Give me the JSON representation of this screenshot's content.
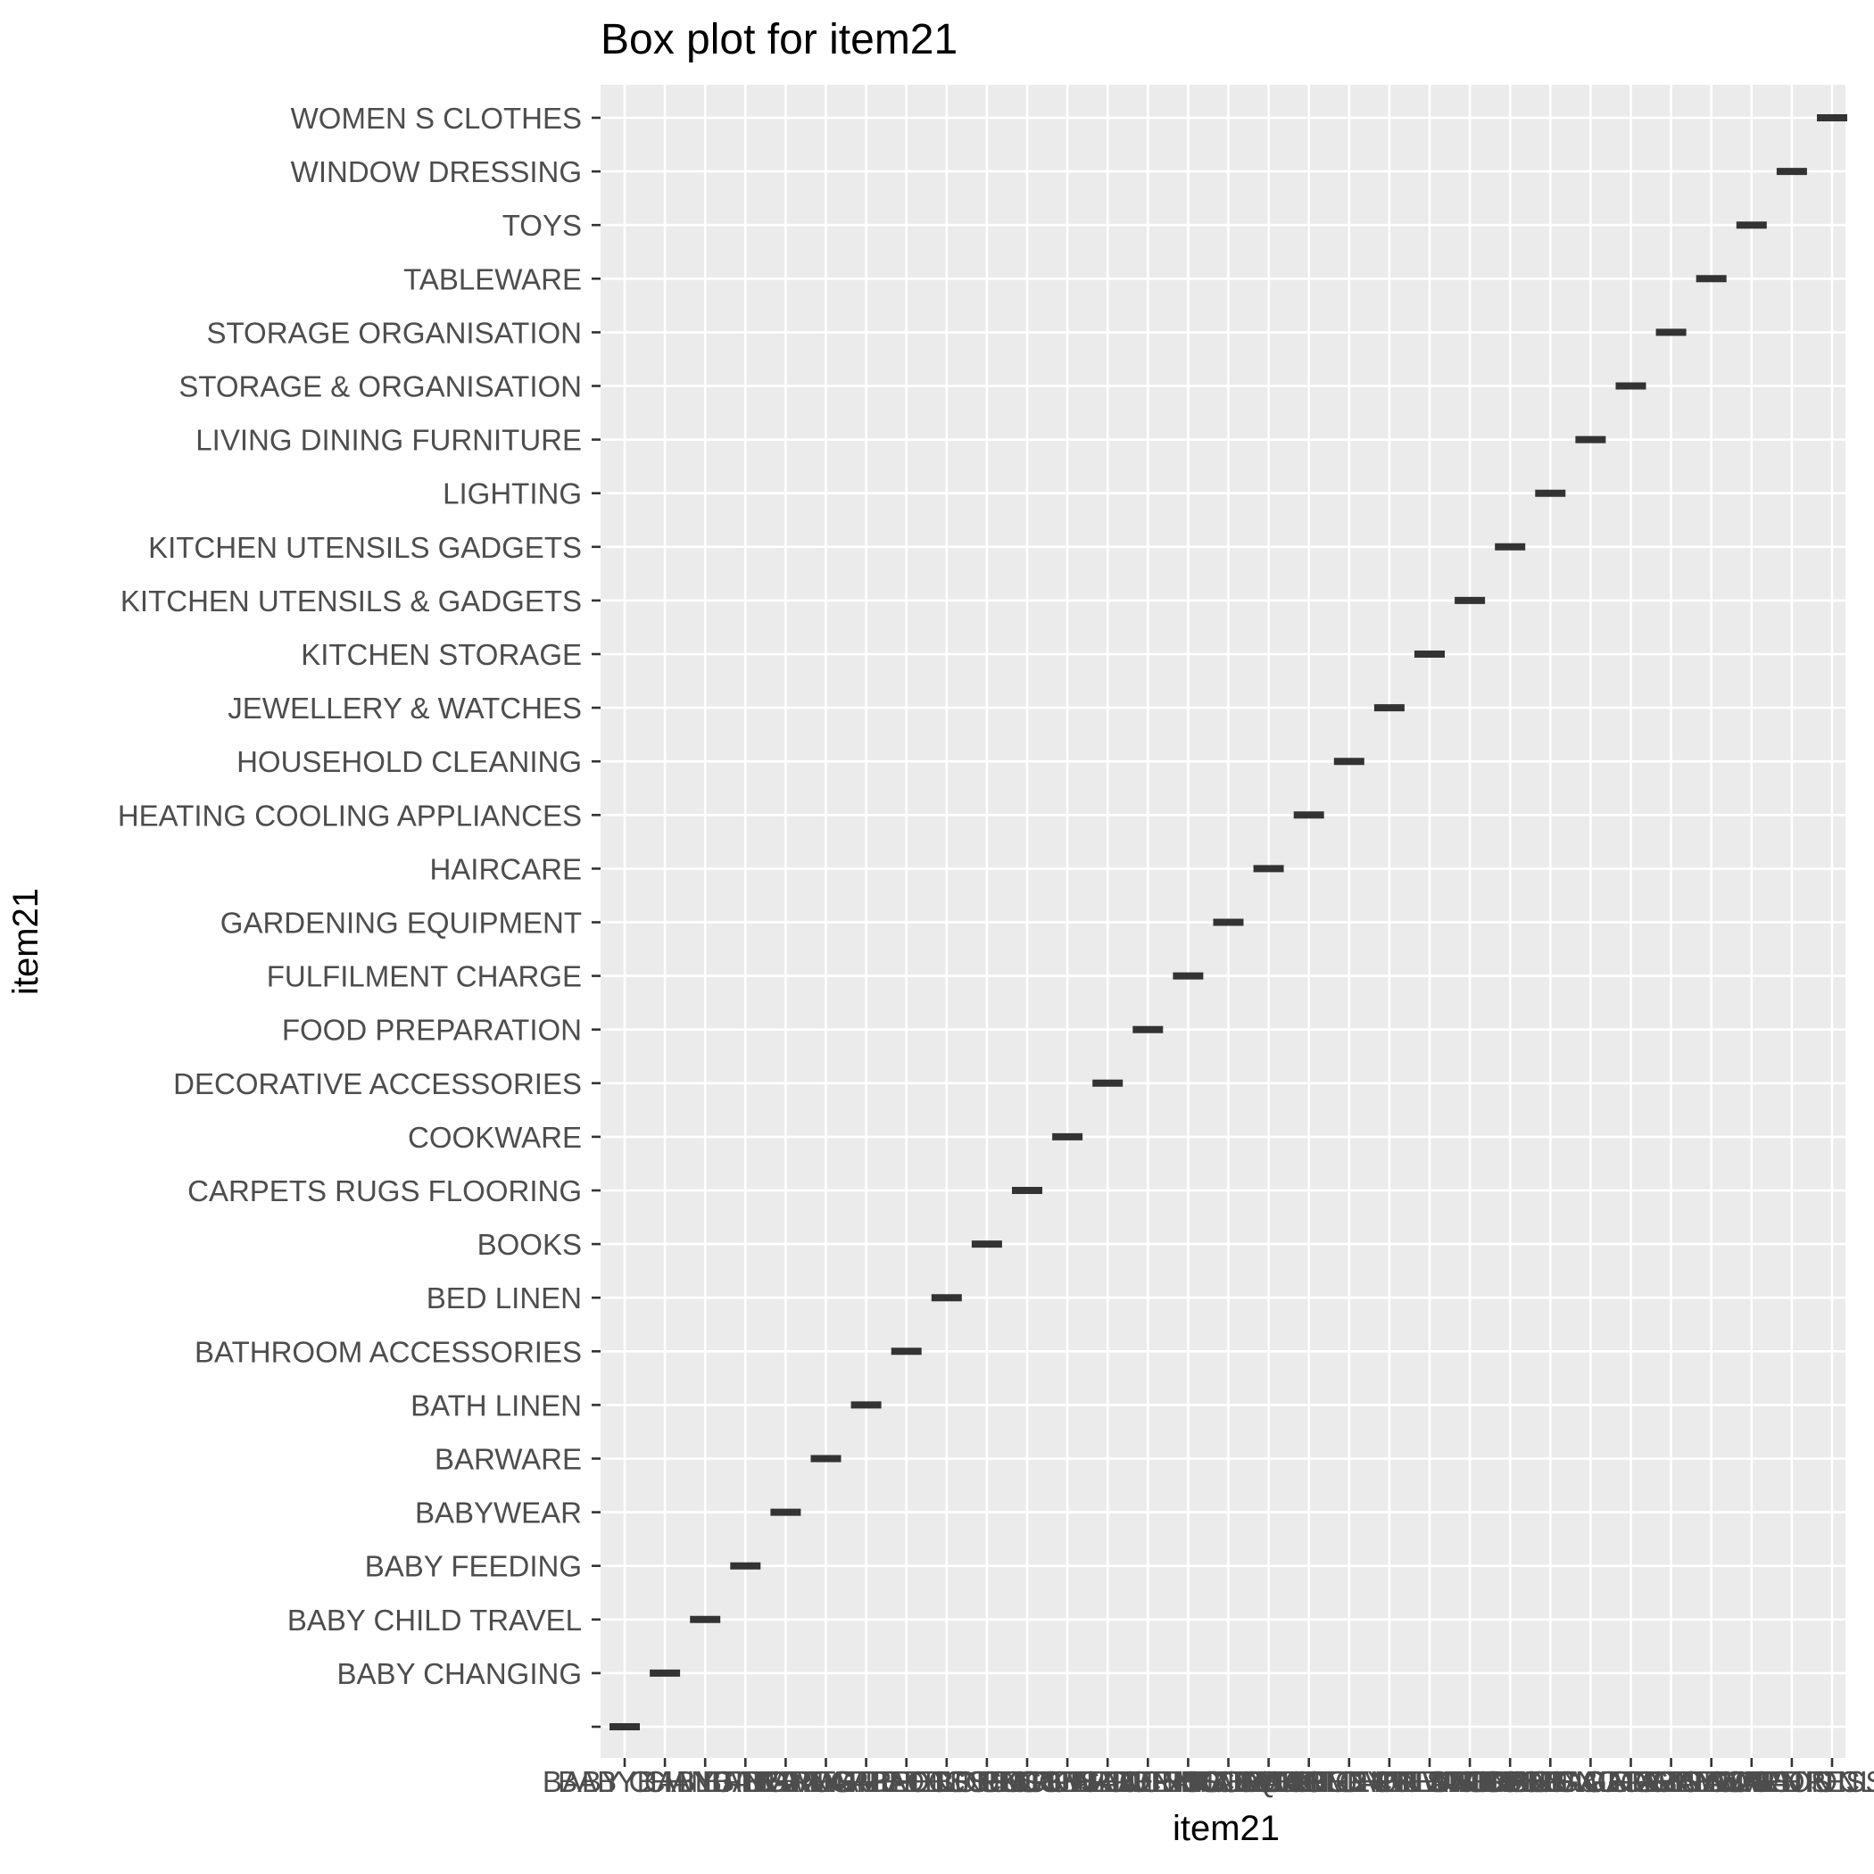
{
  "chart_data": {
    "type": "boxplot",
    "title": "Box plot for item21",
    "xlabel": "item21",
    "ylabel": "item21",
    "categories": [
      "",
      "BABY CHANGING",
      "BABY CHILD TRAVEL",
      "BABY FEEDING",
      "BABYWEAR",
      "BARWARE",
      "BATH LINEN",
      "BATHROOM ACCESSORIES",
      "BED LINEN",
      "BOOKS",
      "CARPETS RUGS FLOORING",
      "COOKWARE",
      "DECORATIVE ACCESSORIES",
      "FOOD PREPARATION",
      "FULFILMENT CHARGE",
      "GARDENING EQUIPMENT",
      "HAIRCARE",
      "HEATING COOLING APPLIANCES",
      "HOUSEHOLD CLEANING",
      "JEWELLERY & WATCHES",
      "KITCHEN STORAGE",
      "KITCHEN UTENSILS & GADGETS",
      "KITCHEN UTENSILS GADGETS",
      "LIGHTING",
      "LIVING DINING FURNITURE",
      "STORAGE & ORGANISATION",
      "STORAGE ORGANISATION",
      "TABLEWARE",
      "TOYS",
      "WINDOW DRESSING",
      "WOMEN S CLOTHES"
    ],
    "boxes": [
      {
        "x": "",
        "y": ""
      },
      {
        "x": "BABY CHANGING",
        "y": "BABY CHANGING"
      },
      {
        "x": "BABY CHILD TRAVEL",
        "y": "BABY CHILD TRAVEL"
      },
      {
        "x": "BABY FEEDING",
        "y": "BABY FEEDING"
      },
      {
        "x": "BABYWEAR",
        "y": "BABYWEAR"
      },
      {
        "x": "BARWARE",
        "y": "BARWARE"
      },
      {
        "x": "BATH LINEN",
        "y": "BATH LINEN"
      },
      {
        "x": "BATHROOM ACCESSORIES",
        "y": "BATHROOM ACCESSORIES"
      },
      {
        "x": "BED LINEN",
        "y": "BED LINEN"
      },
      {
        "x": "BOOKS",
        "y": "BOOKS"
      },
      {
        "x": "CARPETS RUGS FLOORING",
        "y": "CARPETS RUGS FLOORING"
      },
      {
        "x": "COOKWARE",
        "y": "COOKWARE"
      },
      {
        "x": "DECORATIVE ACCESSORIES",
        "y": "DECORATIVE ACCESSORIES"
      },
      {
        "x": "FOOD PREPARATION",
        "y": "FOOD PREPARATION"
      },
      {
        "x": "FULFILMENT CHARGE",
        "y": "FULFILMENT CHARGE"
      },
      {
        "x": "GARDENING EQUIPMENT",
        "y": "GARDENING EQUIPMENT"
      },
      {
        "x": "HAIRCARE",
        "y": "HAIRCARE"
      },
      {
        "x": "HEATING COOLING APPLIANCES",
        "y": "HEATING COOLING APPLIANCES"
      },
      {
        "x": "HOUSEHOLD CLEANING",
        "y": "HOUSEHOLD CLEANING"
      },
      {
        "x": "JEWELLERY & WATCHES",
        "y": "JEWELLERY & WATCHES"
      },
      {
        "x": "KITCHEN STORAGE",
        "y": "KITCHEN STORAGE"
      },
      {
        "x": "KITCHEN UTENSILS & GADGETS",
        "y": "KITCHEN UTENSILS & GADGETS"
      },
      {
        "x": "KITCHEN UTENSILS GADGETS",
        "y": "KITCHEN UTENSILS GADGETS"
      },
      {
        "x": "LIGHTING",
        "y": "LIGHTING"
      },
      {
        "x": "LIVING DINING FURNITURE",
        "y": "LIVING DINING FURNITURE"
      },
      {
        "x": "STORAGE & ORGANISATION",
        "y": "STORAGE & ORGANISATION"
      },
      {
        "x": "STORAGE ORGANISATION",
        "y": "STORAGE ORGANISATION"
      },
      {
        "x": "TABLEWARE",
        "y": "TABLEWARE"
      },
      {
        "x": "TOYS",
        "y": "TOYS"
      },
      {
        "x": "WINDOW DRESSING",
        "y": "WINDOW DRESSING"
      },
      {
        "x": "WOMEN S CLOTHES",
        "y": "WOMEN S CLOTHES"
      }
    ],
    "grid": true,
    "legend": "none",
    "colors": {
      "panel_background": "#ebebeb",
      "grid": "#ffffff",
      "box_line": "#333333",
      "tick": "#333333",
      "tick_label": "#4d4d4d"
    }
  }
}
